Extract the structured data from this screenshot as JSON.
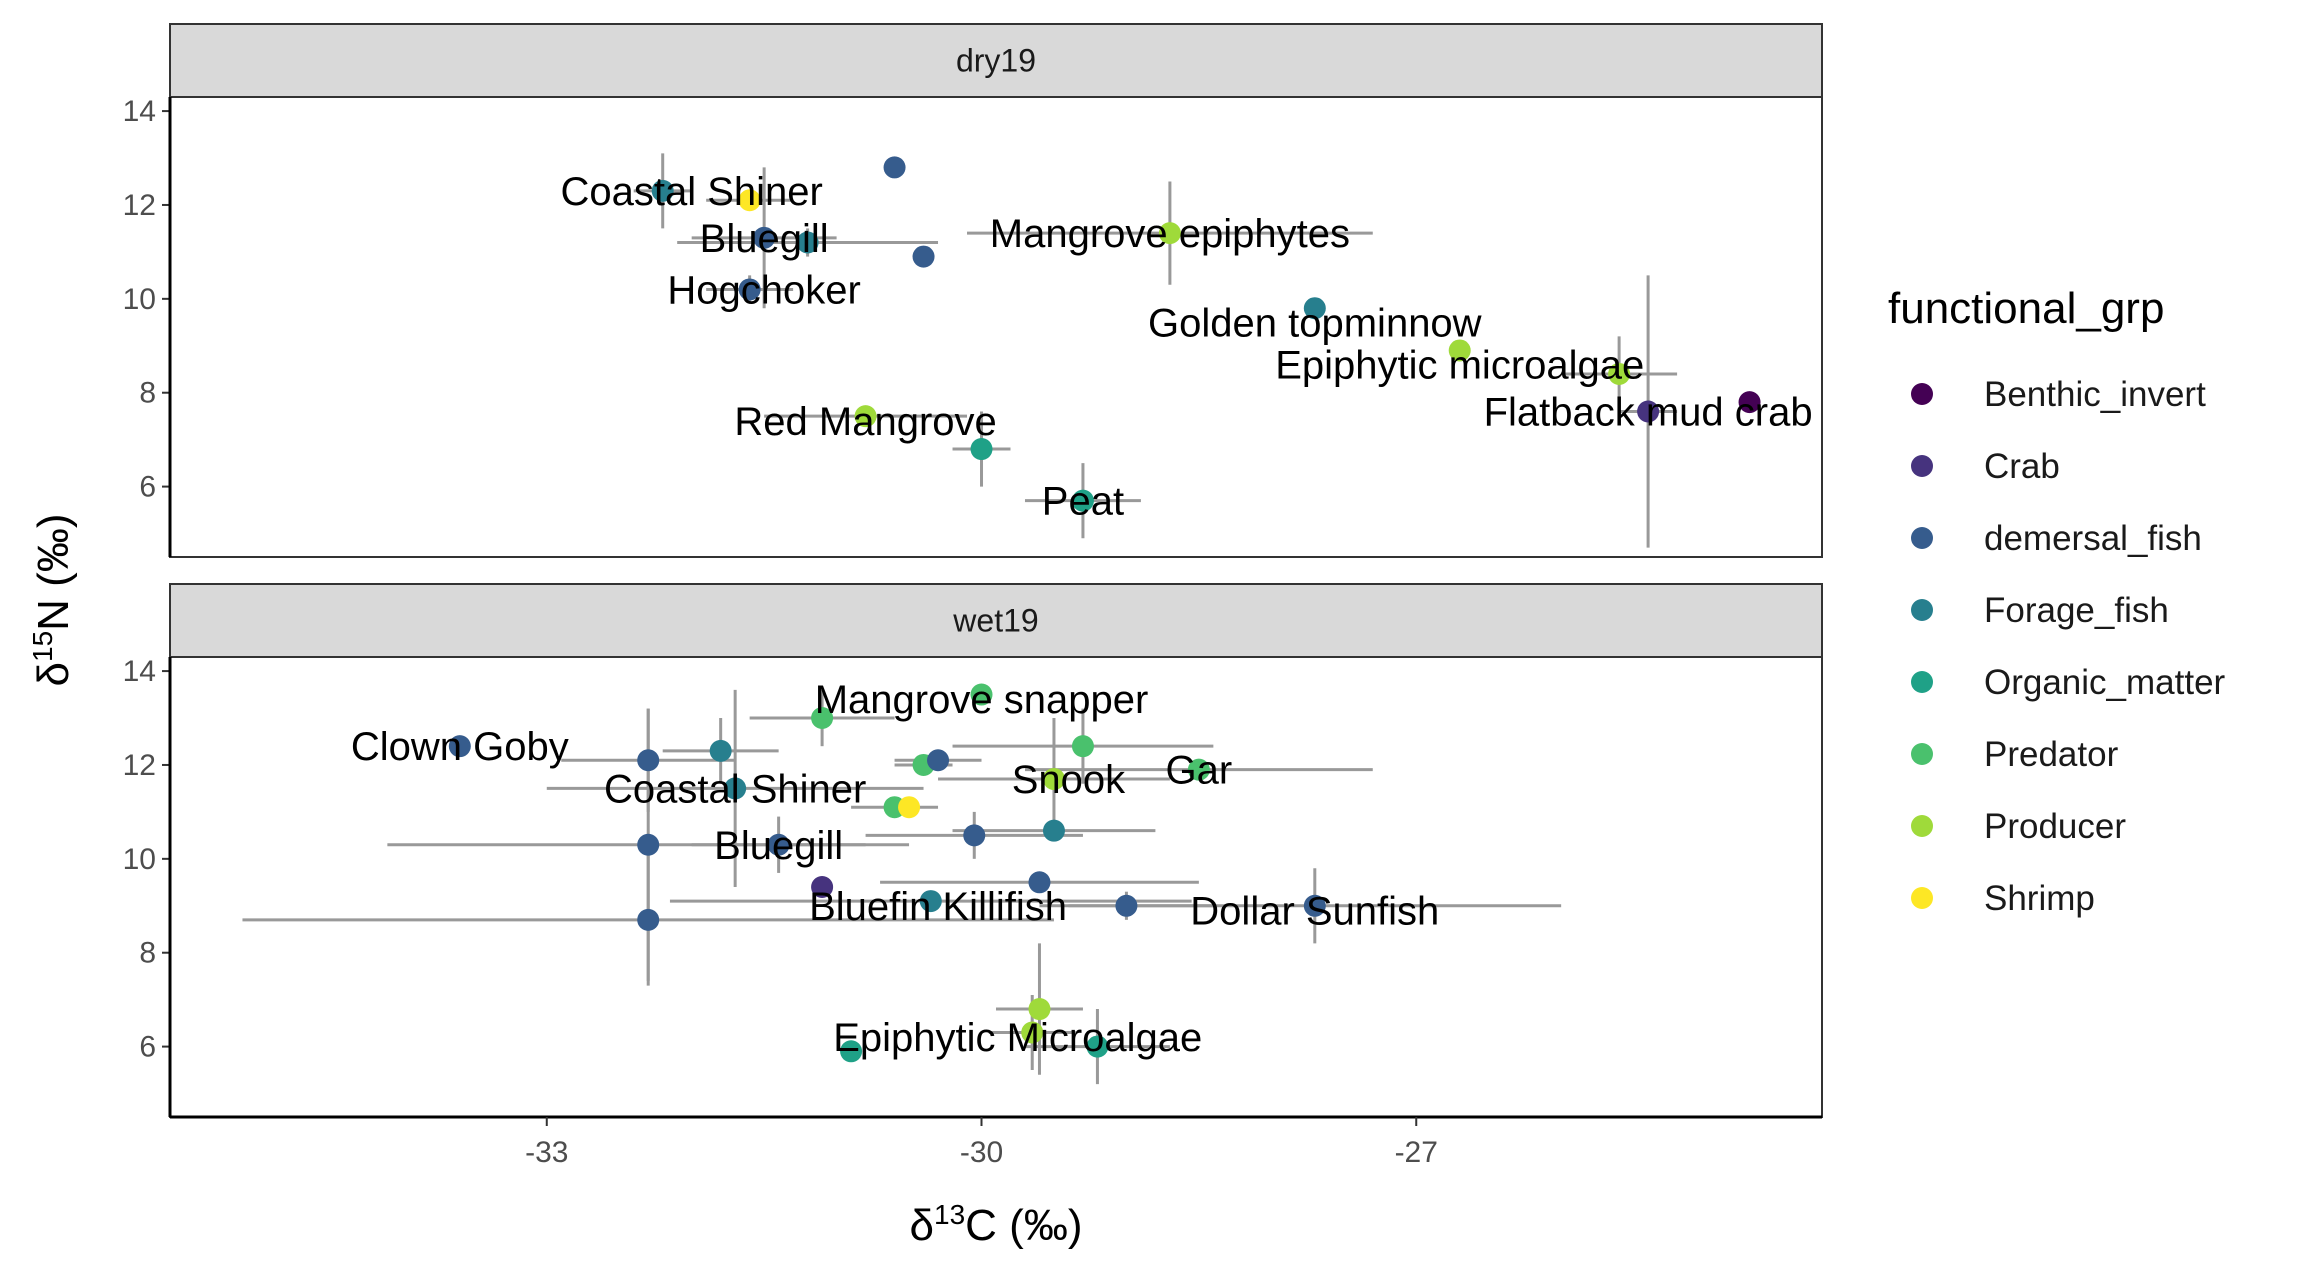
{
  "chart_data": {
    "type": "scatter",
    "x_axis": {
      "ticks": [
        -33,
        -30,
        -27
      ],
      "range": [
        -35.6,
        -24.2
      ],
      "title_pre": "δ",
      "title_sup": "13",
      "title_post": "C (‰)"
    },
    "y_axis": {
      "ticks": [
        6,
        8,
        10,
        12,
        14
      ],
      "range": [
        4.5,
        14.3
      ],
      "title_pre": "δ",
      "title_sup": "15",
      "title_post": "N (‰)"
    },
    "legend": {
      "title": "functional_grp",
      "position": "right",
      "items": [
        {
          "name": "Benthic_invert",
          "color": "#440154"
        },
        {
          "name": "Crab",
          "color": "#46337E"
        },
        {
          "name": "demersal_fish",
          "color": "#365C8D"
        },
        {
          "name": "Forage_fish",
          "color": "#277F8E"
        },
        {
          "name": "Organic_matter",
          "color": "#1FA187"
        },
        {
          "name": "Predator",
          "color": "#4AC16D"
        },
        {
          "name": "Producer",
          "color": "#9FDA3A"
        },
        {
          "name": "Shrimp",
          "color": "#FDE725"
        }
      ]
    },
    "panels": [
      {
        "strip": "dry19",
        "points": [
          {
            "x": -32.2,
            "y": 12.3,
            "grp": "Forage_fish",
            "xerr": 0.2,
            "yerr": 0.8,
            "label": "Coastal Shiner",
            "lx": -32.0,
            "ly": 12.3
          },
          {
            "x": -31.6,
            "y": 12.1,
            "grp": "Shrimp",
            "xerr": 0.3,
            "yerr": 0,
            "label": "",
            "lx": 0,
            "ly": 0
          },
          {
            "x": -30.6,
            "y": 12.8,
            "grp": "demersal_fish",
            "xerr": 0,
            "yerr": 0,
            "label": "",
            "lx": 0,
            "ly": 0
          },
          {
            "x": -31.5,
            "y": 11.3,
            "grp": "demersal_fish",
            "xerr": 0.5,
            "yerr": 1.5,
            "label": "Bluegill",
            "lx": -31.5,
            "ly": 11.3
          },
          {
            "x": -31.2,
            "y": 11.2,
            "grp": "Forage_fish",
            "xerr": 0.9,
            "yerr": 0.3,
            "label": "",
            "lx": 0,
            "ly": 0
          },
          {
            "x": -30.4,
            "y": 10.9,
            "grp": "demersal_fish",
            "xerr": 0,
            "yerr": 0,
            "label": "",
            "lx": 0,
            "ly": 0
          },
          {
            "x": -31.6,
            "y": 10.2,
            "grp": "demersal_fish",
            "xerr": 0.3,
            "yerr": 0.3,
            "label": "Hogchoker",
            "lx": -31.5,
            "ly": 10.2
          },
          {
            "x": -28.7,
            "y": 11.4,
            "grp": "Producer",
            "xerr": 1.4,
            "yerr": 1.1,
            "label": "Mangrove epiphytes",
            "lx": -28.7,
            "ly": 11.4
          },
          {
            "x": -27.7,
            "y": 9.8,
            "grp": "Forage_fish",
            "xerr": 0,
            "yerr": 0,
            "label": "Golden topminnow",
            "lx": -27.7,
            "ly": 9.5
          },
          {
            "x": -26.7,
            "y": 8.9,
            "grp": "Producer",
            "xerr": 0,
            "yerr": 0,
            "label": "Epiphytic microalgae",
            "lx": -26.7,
            "ly": 8.6
          },
          {
            "x": -25.6,
            "y": 8.4,
            "grp": "Producer",
            "xerr": 0.4,
            "yerr": 0.8,
            "label": "",
            "lx": 0,
            "ly": 0
          },
          {
            "x": -25.4,
            "y": 7.6,
            "grp": "Crab",
            "xerr": 0.2,
            "yerr": 2.9,
            "label": "Flatback mud crab",
            "lx": -25.4,
            "ly": 7.6
          },
          {
            "x": -24.7,
            "y": 7.8,
            "grp": "Benthic_invert",
            "xerr": 0,
            "yerr": 0,
            "label": "",
            "lx": 0,
            "ly": 0
          },
          {
            "x": -30.8,
            "y": 7.5,
            "grp": "Producer",
            "xerr": 0.7,
            "yerr": 0,
            "label": "Red Mangrove",
            "lx": -30.8,
            "ly": 7.4
          },
          {
            "x": -30.0,
            "y": 6.8,
            "grp": "Organic_matter",
            "xerr": 0.2,
            "yerr": 0.8,
            "label": "",
            "lx": 0,
            "ly": 0
          },
          {
            "x": -29.3,
            "y": 5.7,
            "grp": "Organic_matter",
            "xerr": 0.4,
            "yerr": 0.8,
            "label": "Peat",
            "lx": -29.3,
            "ly": 5.7
          }
        ]
      },
      {
        "strip": "wet19",
        "points": [
          {
            "x": -33.6,
            "y": 12.4,
            "grp": "demersal_fish",
            "xerr": 0,
            "yerr": 0,
            "label": "Clown Goby",
            "lx": -33.6,
            "ly": 12.4
          },
          {
            "x": -32.3,
            "y": 12.1,
            "grp": "demersal_fish",
            "xerr": 0.6,
            "yerr": 1.1,
            "label": "",
            "lx": 0,
            "ly": 0
          },
          {
            "x": -31.8,
            "y": 12.3,
            "grp": "Forage_fish",
            "xerr": 0.4,
            "yerr": 0.7,
            "label": "",
            "lx": 0,
            "ly": 0
          },
          {
            "x": -31.1,
            "y": 13.0,
            "grp": "Predator",
            "xerr": 0.5,
            "yerr": 0.6,
            "label": "",
            "lx": 0,
            "ly": 0
          },
          {
            "x": -30.0,
            "y": 13.5,
            "grp": "Predator",
            "xerr": 0,
            "yerr": 0,
            "label": "Mangrove snapper",
            "lx": -30.0,
            "ly": 13.4
          },
          {
            "x": -31.7,
            "y": 11.5,
            "grp": "Forage_fish",
            "xerr": 1.3,
            "yerr": 2.1,
            "label": "Coastal Shiner",
            "lx": -31.7,
            "ly": 11.5
          },
          {
            "x": -30.4,
            "y": 12.0,
            "grp": "Predator",
            "xerr": 0.2,
            "yerr": 0,
            "label": "",
            "lx": 0,
            "ly": 0
          },
          {
            "x": -30.3,
            "y": 12.1,
            "grp": "demersal_fish",
            "xerr": 0.3,
            "yerr": 0,
            "label": "",
            "lx": 0,
            "ly": 0
          },
          {
            "x": -29.3,
            "y": 12.4,
            "grp": "Predator",
            "xerr": 0.9,
            "yerr": 0.8,
            "label": "",
            "lx": 0,
            "ly": 0
          },
          {
            "x": -29.5,
            "y": 11.7,
            "grp": "Producer",
            "xerr": 0.8,
            "yerr": 1.3,
            "label": "Snook",
            "lx": -29.4,
            "ly": 11.7
          },
          {
            "x": -28.5,
            "y": 11.9,
            "grp": "Predator",
            "xerr": 1.2,
            "yerr": 0,
            "label": "Gar",
            "lx": -28.5,
            "ly": 11.9
          },
          {
            "x": -30.6,
            "y": 11.1,
            "grp": "Predator",
            "xerr": 0.3,
            "yerr": 0,
            "label": "",
            "lx": 0,
            "ly": 0
          },
          {
            "x": -30.5,
            "y": 11.1,
            "grp": "Shrimp",
            "xerr": 0,
            "yerr": 0,
            "label": "",
            "lx": 0,
            "ly": 0
          },
          {
            "x": -32.3,
            "y": 10.3,
            "grp": "demersal_fish",
            "xerr": 1.8,
            "yerr": 2.9,
            "label": "",
            "lx": 0,
            "ly": 0
          },
          {
            "x": -31.4,
            "y": 10.3,
            "grp": "demersal_fish",
            "xerr": 0.6,
            "yerr": 0.6,
            "label": "Bluegill",
            "lx": -31.4,
            "ly": 10.3
          },
          {
            "x": -30.05,
            "y": 10.5,
            "grp": "demersal_fish",
            "xerr": 0.75,
            "yerr": 0.5,
            "label": "",
            "lx": 0,
            "ly": 0
          },
          {
            "x": -29.5,
            "y": 10.6,
            "grp": "Forage_fish",
            "xerr": 0.7,
            "yerr": 0,
            "label": "",
            "lx": 0,
            "ly": 0
          },
          {
            "x": -29.6,
            "y": 9.5,
            "grp": "demersal_fish",
            "xerr": 1.1,
            "yerr": 0,
            "label": "",
            "lx": 0,
            "ly": 0
          },
          {
            "x": -31.1,
            "y": 9.4,
            "grp": "Crab",
            "xerr": 0,
            "yerr": 0,
            "label": "",
            "lx": 0,
            "ly": 0
          },
          {
            "x": -30.35,
            "y": 9.1,
            "grp": "Forage_fish",
            "xerr": 1.8,
            "yerr": 0,
            "label": "Bluefin Killifish",
            "lx": -30.3,
            "ly": 9.0
          },
          {
            "x": -29.0,
            "y": 9.0,
            "grp": "demersal_fish",
            "xerr": 0.6,
            "yerr": 0.3,
            "label": "",
            "lx": 0,
            "ly": 0
          },
          {
            "x": -27.7,
            "y": 9.0,
            "grp": "demersal_fish",
            "xerr": 1.7,
            "yerr": 0.8,
            "label": "Dollar Sunfish",
            "lx": -27.7,
            "ly": 8.9
          },
          {
            "x": -32.3,
            "y": 8.7,
            "grp": "demersal_fish",
            "xerr": 2.8,
            "yerr": 1.4,
            "label": "",
            "lx": 0,
            "ly": 0
          },
          {
            "x": -29.6,
            "y": 6.8,
            "grp": "Producer",
            "xerr": 0.3,
            "yerr": 1.4,
            "label": "",
            "lx": 0,
            "ly": 0
          },
          {
            "x": -29.65,
            "y": 6.3,
            "grp": "Producer",
            "xerr": 0.3,
            "yerr": 0.8,
            "label": "Epiphytic Microalgae",
            "lx": -29.75,
            "ly": 6.2
          },
          {
            "x": -29.2,
            "y": 6.0,
            "grp": "Organic_matter",
            "xerr": 0.5,
            "yerr": 0.8,
            "label": "",
            "lx": 0,
            "ly": 0
          },
          {
            "x": -30.9,
            "y": 5.9,
            "grp": "Organic_matter",
            "xerr": 0,
            "yerr": 0,
            "label": "",
            "lx": 0,
            "ly": 0
          }
        ]
      }
    ]
  }
}
